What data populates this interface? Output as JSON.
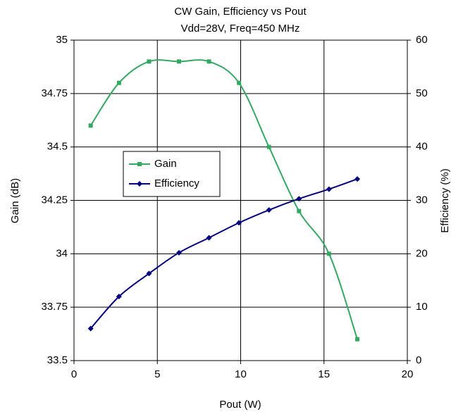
{
  "chart_data": {
    "type": "line",
    "title": "CW Gain, Efficiency vs Pout",
    "subtitle": "Vdd=28V, Freq=450 MHz",
    "x_label": "Pout (W)",
    "y_label": "Gain (dB)",
    "y2_label": "Efficiency (%)",
    "x": [
      1,
      2.7,
      4.5,
      6.3,
      8.1,
      9.9,
      11.7,
      13.5,
      15.3,
      17
    ],
    "series": [
      {
        "name": "Gain",
        "color": "#33a861",
        "marker": "square",
        "values": [
          34.6,
          34.8,
          34.9,
          34.9,
          34.9,
          34.8,
          34.5,
          34.2,
          34.0,
          33.6
        ]
      },
      {
        "name": "Efficiency",
        "color": "#000080",
        "marker": "diamond",
        "axis": "y2",
        "values": [
          6,
          12,
          16.3,
          20.2,
          23,
          25.8,
          28.2,
          30.3,
          32.1,
          34
        ]
      }
    ],
    "xlim": [
      0,
      20
    ],
    "xticks": [
      0,
      5,
      10,
      15,
      20
    ],
    "ylim": [
      33.5,
      35
    ],
    "yticks": [
      33.5,
      33.75,
      34,
      34.25,
      34.5,
      34.75,
      35
    ],
    "y2lim": [
      0,
      60
    ],
    "y2ticks": [
      0,
      10,
      20,
      30,
      40,
      50,
      60
    ],
    "grid": true,
    "legend": "left"
  }
}
